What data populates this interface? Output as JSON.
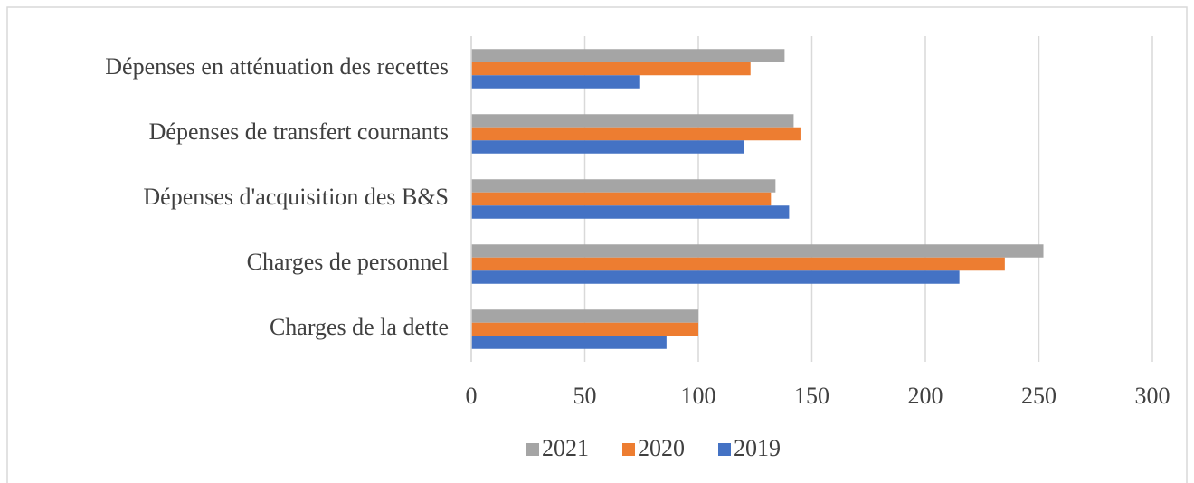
{
  "chart_data": {
    "type": "hbar",
    "categories": [
      "Dépenses en atténuation des recettes",
      "Dépenses de transfert cournants",
      "Dépenses d'acquisition des B&S",
      "Charges de personnel",
      "Charges de la dette"
    ],
    "series": [
      {
        "name": "2021",
        "color": "#a5a5a5",
        "values": [
          138,
          142,
          134,
          252,
          100
        ]
      },
      {
        "name": "2020",
        "color": "#ed7d31",
        "values": [
          123,
          145,
          132,
          235,
          100
        ]
      },
      {
        "name": "2019",
        "color": "#4472c4",
        "values": [
          74,
          120,
          140,
          215,
          86
        ]
      }
    ],
    "xlim": [
      0,
      300
    ],
    "xticks": [
      0,
      50,
      100,
      150,
      200,
      250,
      300
    ],
    "grid": true,
    "legend": "bottom"
  }
}
